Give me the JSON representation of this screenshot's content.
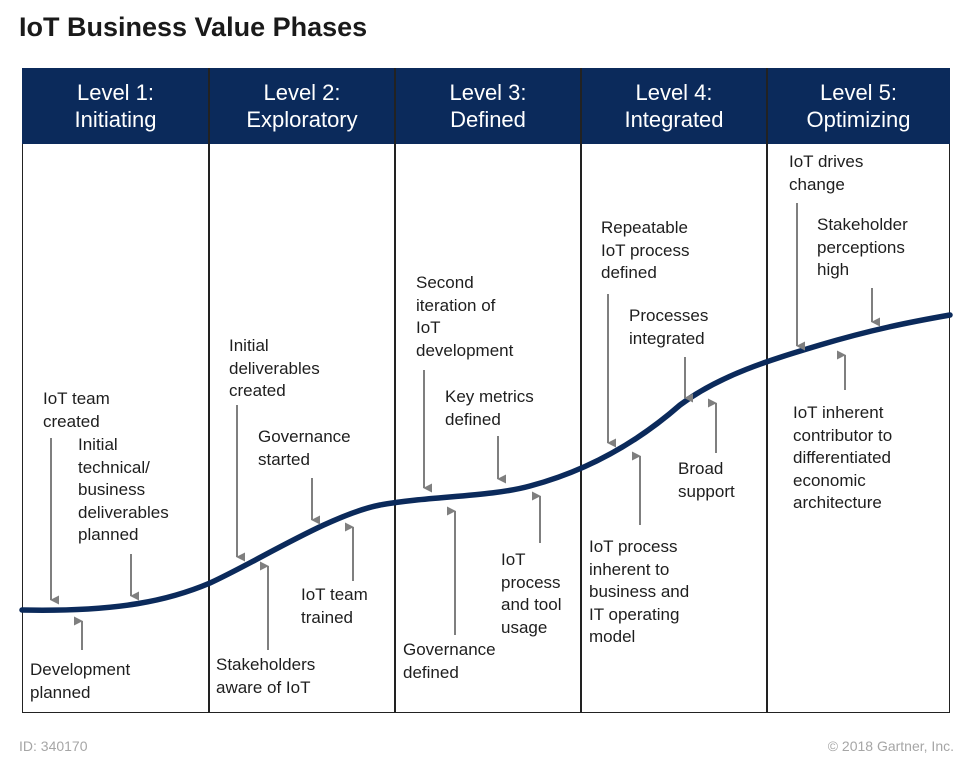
{
  "title": "IoT Business Value Phases",
  "colors": {
    "header_bg": "#0b2a5b",
    "curve": "#0b2a5b",
    "arrow": "#7f7f7f"
  },
  "levels": [
    {
      "name": "Level 1:",
      "phase": "Initiating"
    },
    {
      "name": "Level 2:",
      "phase": "Exploratory"
    },
    {
      "name": "Level 3:",
      "phase": "Defined"
    },
    {
      "name": "Level 4:",
      "phase": "Integrated"
    },
    {
      "name": "Level 5:",
      "phase": "Optimizing"
    }
  ],
  "milestones": [
    {
      "id": "iot-team-created",
      "text": "IoT team\ncreated"
    },
    {
      "id": "initial-technical-deliverables",
      "text": "Initial\ntechnical/\nbusiness\ndeliverables\nplanned"
    },
    {
      "id": "development-planned",
      "text": "Development\nplanned"
    },
    {
      "id": "initial-deliverables-created",
      "text": "Initial\ndeliverables\ncreated"
    },
    {
      "id": "governance-started",
      "text": "Governance\nstarted"
    },
    {
      "id": "iot-team-trained",
      "text": "IoT team\ntrained"
    },
    {
      "id": "stakeholders-aware",
      "text": "Stakeholders\naware of IoT"
    },
    {
      "id": "second-iteration",
      "text": "Second\niteration of\nIoT\ndevelopment"
    },
    {
      "id": "key-metrics-defined",
      "text": "Key metrics\ndefined"
    },
    {
      "id": "governance-defined",
      "text": "Governance\ndefined"
    },
    {
      "id": "iot-process-tool-usage",
      "text": "IoT\nprocess\nand tool\nusage"
    },
    {
      "id": "repeatable-iot-process",
      "text": "Repeatable\nIoT process\ndefined"
    },
    {
      "id": "processes-integrated",
      "text": "Processes\nintegrated"
    },
    {
      "id": "broad-support",
      "text": "Broad\nsupport"
    },
    {
      "id": "iot-process-inherent",
      "text": "IoT process\ninherent to\nbusiness and\nIT operating\nmodel"
    },
    {
      "id": "iot-drives-change",
      "text": "IoT drives\nchange"
    },
    {
      "id": "stakeholder-perceptions-high",
      "text": "Stakeholder\nperceptions\nhigh"
    },
    {
      "id": "iot-inherent-contributor",
      "text": "IoT inherent\ncontributor to\ndifferentiated\neconomic\narchitecture"
    }
  ],
  "footer": {
    "id": "ID: 340170",
    "copyright": "© 2018 Gartner, Inc."
  }
}
